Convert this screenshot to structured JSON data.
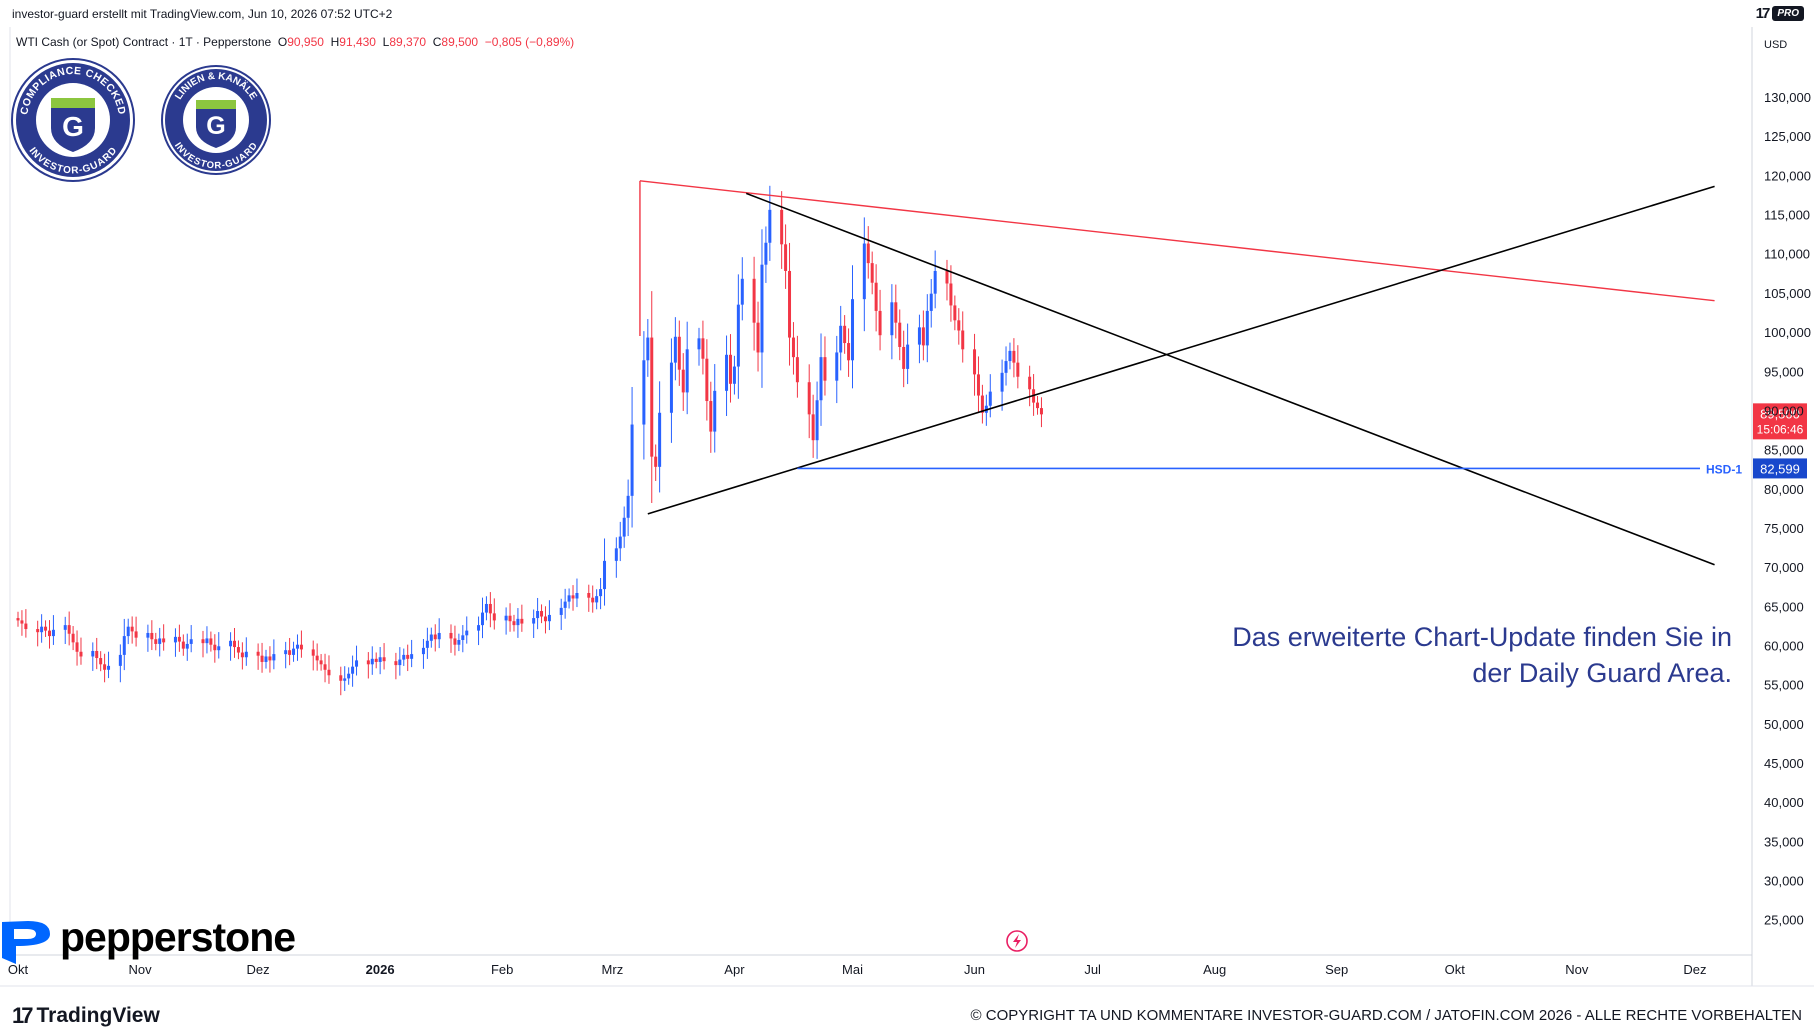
{
  "header": {
    "title": "investor-guard erstellt mit TradingView.com, Jun 10, 2026 07:52 UTC+2",
    "pro_badge": "PRO"
  },
  "legend": {
    "symbol": "WTI Cash (or Spot) Contract · 1T · Pepperstone",
    "open_label": "O",
    "open": "90,950",
    "high_label": "H",
    "high": "91,430",
    "low_label": "L",
    "low": "89,370",
    "close_label": "C",
    "close": "89,500",
    "change": "−0,805 (−0,89%)"
  },
  "badges": [
    {
      "top_text": "COMPLIANCE CHECKED",
      "bottom_text": "INVESTOR-GUARD",
      "letter": "G"
    },
    {
      "top_text": "LINIEN & KANÄLE",
      "bottom_text": "INVESTOR-GUARD",
      "letter": "G"
    }
  ],
  "broker_logo": "pepperstone",
  "footer": {
    "tv_logo": "TradingView",
    "copyright": "© COPYRIGHT TA UND KOMMENTARE INVESTOR-GUARD.COM / JATOFIN.COM 2026 - ALLE RECHTE VORBEHALTEN"
  },
  "chart_data": {
    "type": "candlestick",
    "currency": "USD",
    "y_ticks": [
      25,
      30,
      35,
      40,
      45,
      50,
      55,
      60,
      65,
      70,
      75,
      80,
      85,
      90,
      95,
      100,
      105,
      110,
      115,
      120,
      125,
      130
    ],
    "y_tick_labels": [
      "25,000",
      "30,000",
      "35,000",
      "40,000",
      "45,000",
      "50,000",
      "55,000",
      "60,000",
      "65,000",
      "70,000",
      "75,000",
      "80,000",
      "85,000",
      "90,000",
      "95,000",
      "100,000",
      "105,000",
      "110,000",
      "115,000",
      "120,000",
      "125,000",
      "130,000"
    ],
    "ylim": [
      20.5,
      136
    ],
    "x_ticks": [
      {
        "date": "2025-10-01",
        "label": "Okt"
      },
      {
        "date": "2025-11-01",
        "label": "Nov"
      },
      {
        "date": "2025-12-01",
        "label": "Dez"
      },
      {
        "date": "2026-01-01",
        "label": "2026"
      },
      {
        "date": "2026-02-01",
        "label": "Feb"
      },
      {
        "date": "2026-03-01",
        "label": "Mrz"
      },
      {
        "date": "2026-04-01",
        "label": "Apr"
      },
      {
        "date": "2026-05-01",
        "label": "Mai"
      },
      {
        "date": "2026-06-01",
        "label": "Jun"
      },
      {
        "date": "2026-07-01",
        "label": "Jul"
      },
      {
        "date": "2026-08-01",
        "label": "Aug"
      },
      {
        "date": "2026-09-01",
        "label": "Sep"
      },
      {
        "date": "2026-10-01",
        "label": "Okt"
      },
      {
        "date": "2026-11-01",
        "label": "Nov"
      },
      {
        "date": "2026-12-01",
        "label": "Dez"
      }
    ],
    "xlim": [
      "2025-10-01",
      "2026-12-15"
    ],
    "last_price": {
      "value": 89.5,
      "label": "89,500",
      "countdown": "15:06:46"
    },
    "hsd_level": {
      "value": 82.599,
      "label": "82,599",
      "name": "HSD-1",
      "from": "2026-04-17",
      "to": "2026-12-06"
    },
    "trendlines": [
      {
        "name": "red-resistance",
        "color": "#f23645",
        "from": [
          "2026-03-08",
          119.3
        ],
        "to": [
          "2026-12-06",
          104.0
        ]
      },
      {
        "name": "red-vertical",
        "color": "#f23645",
        "from": [
          "2026-03-08",
          119.3
        ],
        "to": [
          "2026-03-08",
          99.5
        ]
      },
      {
        "name": "black-descending",
        "color": "#000000",
        "from": [
          "2026-04-04",
          117.7
        ],
        "to": [
          "2026-12-06",
          70.3
        ]
      },
      {
        "name": "black-ascending",
        "color": "#000000",
        "from": [
          "2026-03-10",
          76.8
        ],
        "to": [
          "2026-12-06",
          118.6
        ]
      }
    ],
    "annotation": [
      "Das erweiterte Chart-Update finden Sie in",
      "der Daily Guard Area."
    ],
    "colors": {
      "up": "#2962ff",
      "down": "#f23645",
      "hsd": "#2962ff"
    },
    "candles_note_start": "2025-10-01",
    "closes": [
      63.2,
      62.8,
      62.1,
      61.7,
      62.4,
      61.9,
      61.2,
      62.0,
      62.6,
      61.5,
      60.4,
      59.2,
      58.6,
      59.3,
      58.4,
      57.6,
      56.9,
      57.4,
      58.8,
      61.2,
      62.4,
      61.8,
      61.0,
      61.6,
      60.8,
      60.2,
      60.9,
      60.4,
      61.1,
      60.5,
      59.6,
      60.2,
      60.8,
      60.3,
      60.9,
      60.1,
      59.4,
      59.9,
      60.6,
      59.8,
      59.1,
      58.5,
      59.2,
      58.7,
      57.9,
      58.6,
      58.1,
      58.9,
      59.4,
      58.8,
      59.6,
      60.1,
      59.5,
      58.7,
      58.1,
      57.6,
      56.9,
      56.2,
      55.5,
      55.8,
      56.4,
      57.3,
      58.1,
      57.6,
      58.3,
      57.9,
      58.5,
      58.0,
      57.5,
      58.2,
      58.8,
      58.3,
      58.9,
      59.7,
      60.6,
      61.4,
      60.8,
      61.6,
      60.9,
      60.1,
      60.7,
      61.3,
      61.9,
      62.6,
      64.2,
      65.3,
      64.1,
      63.2,
      63.8,
      63.1,
      62.6,
      63.4,
      62.8,
      63.5,
      64.4,
      63.7,
      63.1,
      63.9,
      64.8,
      65.6,
      66.4,
      66.0,
      66.7,
      66.1,
      65.5,
      66.3,
      67.2,
      70.8,
      72.4,
      73.9,
      76.3,
      79.1,
      88.2,
      96.4,
      99.3,
      84.1,
      82.8,
      89.7,
      96.1,
      99.4,
      95.2,
      92.3,
      97.8,
      99.2,
      96.6,
      91.2,
      87.3,
      92.5,
      97.1,
      93.4,
      95.6,
      103.5,
      106.8,
      101.2,
      97.4,
      108.6,
      111.4,
      115.6,
      111.2,
      107.8,
      99.3,
      96.8,
      93.6,
      89.5,
      86.2,
      91.3,
      96.8,
      93.8,
      97.4,
      100.8,
      98.6,
      96.4,
      104.2,
      111.3,
      108.8,
      106.3,
      102.7,
      99.6,
      103.8,
      101.2,
      98.1,
      95.3,
      98.4,
      100.6,
      98.3,
      102.7,
      104.9,
      107.8,
      106.2,
      103.4,
      101.5,
      100.2,
      97.8,
      94.6,
      91.9,
      89.7,
      90.6,
      92.4,
      94.8,
      96.3,
      97.6,
      96.1,
      94.3,
      92.7,
      91.0,
      90.3,
      89.5
    ]
  }
}
